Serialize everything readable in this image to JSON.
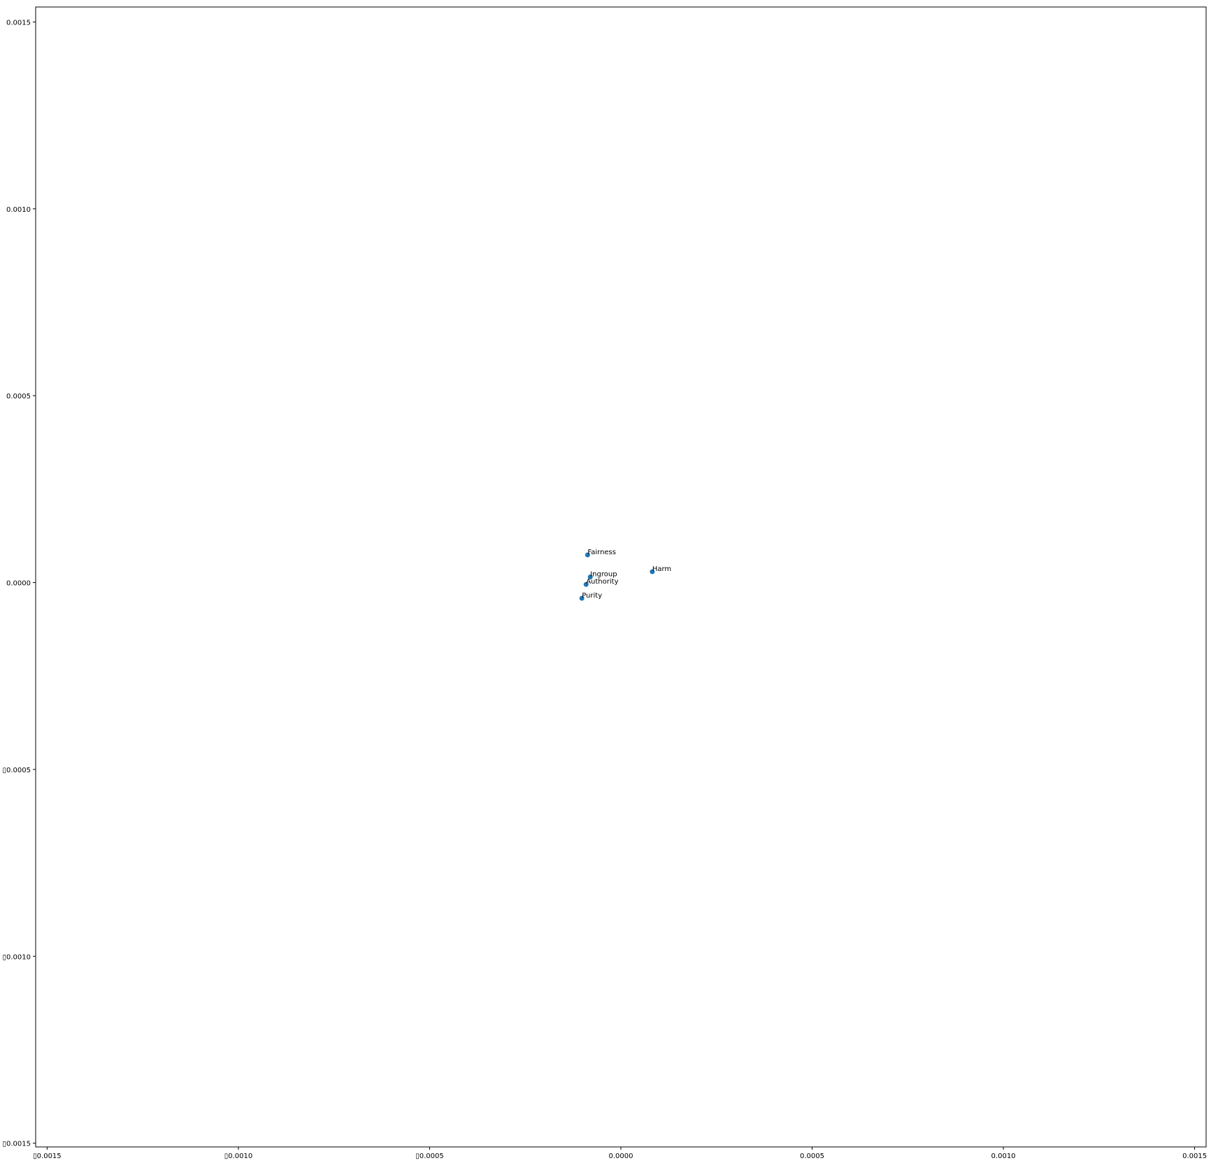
{
  "chart_data": {
    "type": "scatter",
    "title": "",
    "xlabel": "",
    "ylabel": "",
    "xlim": [
      -0.00153,
      0.00153
    ],
    "ylim": [
      -0.00151,
      0.00154
    ],
    "grid": false,
    "marker_color": "#1f77b4",
    "x_ticks": [
      {
        "value": -0.0015,
        "label": "▯0.0015"
      },
      {
        "value": -0.001,
        "label": "▯0.0010"
      },
      {
        "value": -0.0005,
        "label": "▯0.0005"
      },
      {
        "value": 0.0,
        "label": "0.0000"
      },
      {
        "value": 0.0005,
        "label": "0.0005"
      },
      {
        "value": 0.001,
        "label": "0.0010"
      },
      {
        "value": 0.0015,
        "label": "0.0015"
      }
    ],
    "y_ticks": [
      {
        "value": 0.0015,
        "label": "0.0015"
      },
      {
        "value": 0.001,
        "label": "0.0010"
      },
      {
        "value": 0.0005,
        "label": "0.0005"
      },
      {
        "value": 0.0,
        "label": "0.0000"
      },
      {
        "value": -0.0005,
        "label": "▯0.0005"
      },
      {
        "value": -0.001,
        "label": "▯0.0010"
      },
      {
        "value": -0.0015,
        "label": "▯0.0015"
      }
    ],
    "points": [
      {
        "label": "Fairness",
        "x": -8.7e-05,
        "y": 7.4e-05
      },
      {
        "label": "Harm",
        "x": 8.2e-05,
        "y": 2.9e-05
      },
      {
        "label": "Ingroup",
        "x": -8e-05,
        "y": 1.5e-05
      },
      {
        "label": "Authority",
        "x": -9.1e-05,
        "y": -5e-06
      },
      {
        "label": "Purity",
        "x": -0.000102,
        "y": -4.2e-05
      }
    ]
  }
}
